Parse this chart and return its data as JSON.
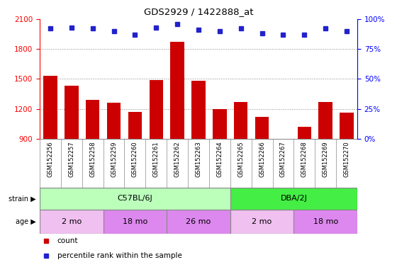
{
  "title": "GDS2929 / 1422888_at",
  "samples": [
    "GSM152256",
    "GSM152257",
    "GSM152258",
    "GSM152259",
    "GSM152260",
    "GSM152261",
    "GSM152262",
    "GSM152263",
    "GSM152264",
    "GSM152265",
    "GSM152266",
    "GSM152267",
    "GSM152268",
    "GSM152269",
    "GSM152270"
  ],
  "counts": [
    1530,
    1430,
    1290,
    1260,
    1170,
    1490,
    1870,
    1480,
    1200,
    1270,
    1120,
    870,
    1020,
    1270,
    1165
  ],
  "percentile_ranks": [
    92,
    93,
    92,
    90,
    87,
    93,
    96,
    91,
    90,
    92,
    88,
    87,
    87,
    92,
    90
  ],
  "ylim_left": [
    900,
    2100
  ],
  "ylim_right": [
    0,
    100
  ],
  "yticks_left": [
    900,
    1200,
    1500,
    1800,
    2100
  ],
  "yticks_right": [
    0,
    25,
    50,
    75,
    100
  ],
  "bar_color": "#cc0000",
  "dot_color": "#2222cc",
  "strain_groups": [
    {
      "label": "C57BL/6J",
      "start": 0,
      "end": 9,
      "color": "#bbffbb"
    },
    {
      "label": "DBA/2J",
      "start": 9,
      "end": 15,
      "color": "#44ee44"
    }
  ],
  "age_groups": [
    {
      "label": "2 mo",
      "start": 0,
      "end": 3,
      "color": "#f0c0f0"
    },
    {
      "label": "18 mo",
      "start": 3,
      "end": 6,
      "color": "#dd88ee"
    },
    {
      "label": "26 mo",
      "start": 6,
      "end": 9,
      "color": "#dd88ee"
    },
    {
      "label": "2 mo",
      "start": 9,
      "end": 12,
      "color": "#f0c0f0"
    },
    {
      "label": "18 mo",
      "start": 12,
      "end": 15,
      "color": "#dd88ee"
    }
  ],
  "grid_color": "#888888",
  "label_bg": "#cccccc",
  "label_border": "#888888"
}
